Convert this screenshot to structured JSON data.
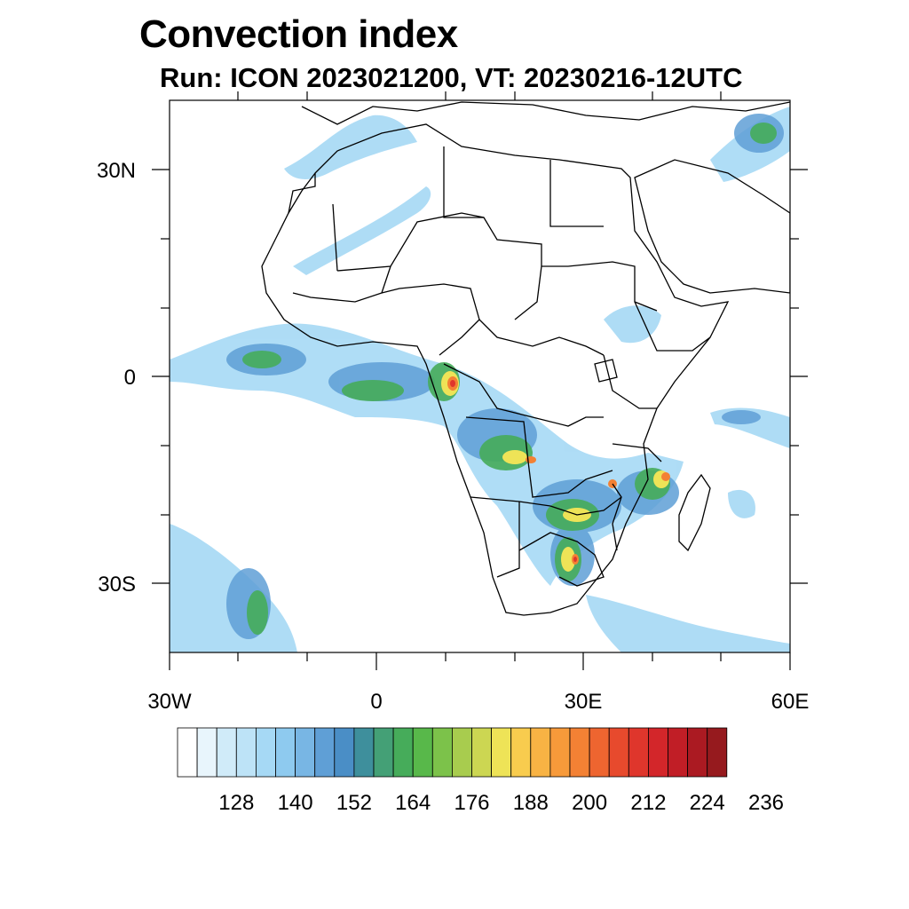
{
  "title": "Convection index",
  "subtitle": "Run: ICON 2023021200,  VT: 20230216-12UTC",
  "axes": {
    "lon_labels": [
      "30W",
      "0",
      "30E",
      "60E"
    ],
    "lat_labels": [
      "30N",
      "0",
      "30S"
    ]
  },
  "colorbar": {
    "labels": [
      "128",
      "140",
      "152",
      "164",
      "176",
      "188",
      "200",
      "212",
      "224",
      "236"
    ],
    "colors": [
      "#ffffff",
      "#e8f5fc",
      "#d0ebf9",
      "#bde3f7",
      "#a6d9f5",
      "#8ecaef",
      "#78b6e4",
      "#5f9fd6",
      "#4a8ec6",
      "#3e8f9c",
      "#44a076",
      "#46ac5a",
      "#58b84a",
      "#7cc24a",
      "#a8cc4e",
      "#ccd652",
      "#eee357",
      "#f8cc4e",
      "#f8b344",
      "#f79a3a",
      "#f38134",
      "#ee6530",
      "#e74a2d",
      "#df362c",
      "#d3262a",
      "#c11e26",
      "#ab1a22",
      "#961a1e"
    ]
  }
}
